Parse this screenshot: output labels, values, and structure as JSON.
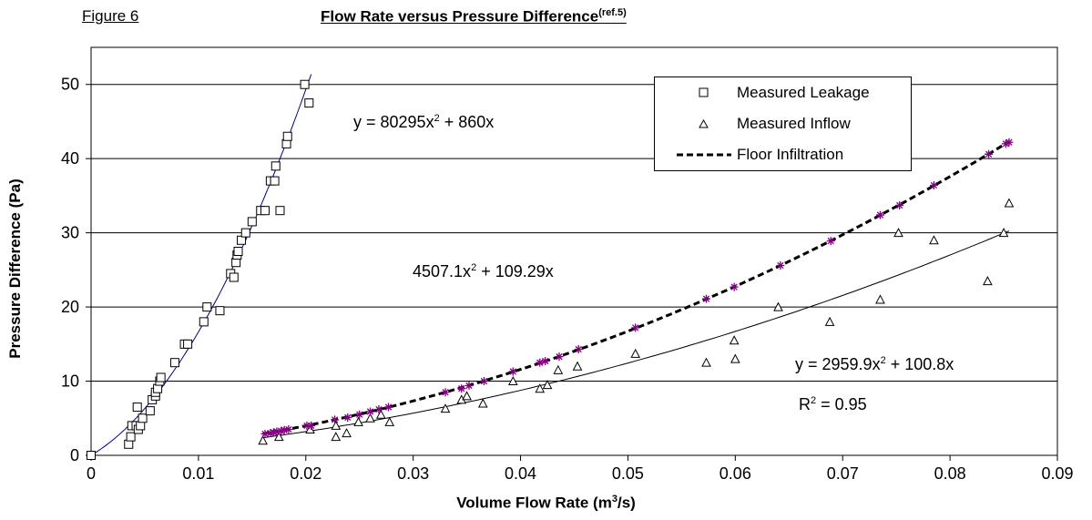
{
  "figure_label": "Figure 6",
  "chart_data": {
    "type": "scatter",
    "title": "Flow Rate versus Pressure Difference",
    "title_ref": "(ref.5)",
    "xlabel": "Volume Flow Rate (m",
    "xlabel_sup": "3",
    "xlabel_end": "/s)",
    "ylabel": "Pressure Difference (Pa)",
    "xlim": [
      0,
      0.09
    ],
    "ylim": [
      0,
      55
    ],
    "x_ticks": [
      0,
      0.01,
      0.02,
      0.03,
      0.04,
      0.05,
      0.06,
      0.07,
      0.08,
      0.09
    ],
    "x_tick_labels": [
      "0",
      "0.01",
      "0.02",
      "0.03",
      "0.04",
      "0.05",
      "0.06",
      "0.07",
      "0.08",
      "0.09"
    ],
    "y_ticks": [
      0,
      10,
      20,
      30,
      40,
      50
    ],
    "y_tick_labels": [
      "0",
      "10",
      "20",
      "30",
      "40",
      "50"
    ],
    "grid": "horizontal",
    "legend_position": "top-right",
    "legend": [
      {
        "label": "Measured Leakage",
        "marker": "square"
      },
      {
        "label": "Measured Inflow",
        "marker": "triangle"
      },
      {
        "label": "Floor Infiltration",
        "marker": "dashed-line"
      }
    ],
    "series": [
      {
        "name": "Measured Leakage",
        "marker": "square",
        "points": [
          [
            0,
            0
          ],
          [
            0.0035,
            1.5
          ],
          [
            0.0037,
            2.5
          ],
          [
            0.0038,
            4
          ],
          [
            0.0042,
            4
          ],
          [
            0.0043,
            6.5
          ],
          [
            0.0044,
            3.5
          ],
          [
            0.0046,
            4
          ],
          [
            0.0048,
            5
          ],
          [
            0.0055,
            6
          ],
          [
            0.0057,
            7.5
          ],
          [
            0.006,
            8
          ],
          [
            0.006,
            8.5
          ],
          [
            0.0062,
            9
          ],
          [
            0.0064,
            10
          ],
          [
            0.0065,
            10.5
          ],
          [
            0.0078,
            12.5
          ],
          [
            0.0087,
            15
          ],
          [
            0.009,
            15
          ],
          [
            0.0105,
            18
          ],
          [
            0.0108,
            20
          ],
          [
            0.012,
            19.5
          ],
          [
            0.013,
            24.5
          ],
          [
            0.0133,
            24
          ],
          [
            0.0135,
            26
          ],
          [
            0.0136,
            27
          ],
          [
            0.0137,
            27.5
          ],
          [
            0.014,
            29
          ],
          [
            0.0144,
            30
          ],
          [
            0.015,
            31.5
          ],
          [
            0.0158,
            33
          ],
          [
            0.0162,
            33
          ],
          [
            0.0167,
            37
          ],
          [
            0.0171,
            37
          ],
          [
            0.0172,
            39
          ],
          [
            0.0176,
            33
          ],
          [
            0.0182,
            42
          ],
          [
            0.0183,
            43
          ],
          [
            0.0199,
            50
          ],
          [
            0.0203,
            47.5
          ]
        ]
      },
      {
        "name": "Measured Inflow",
        "marker": "triangle",
        "points": [
          [
            0.016,
            2
          ],
          [
            0.0175,
            2.5
          ],
          [
            0.0204,
            3.5
          ],
          [
            0.0228,
            2.5
          ],
          [
            0.0238,
            3
          ],
          [
            0.0228,
            4
          ],
          [
            0.0249,
            4.5
          ],
          [
            0.026,
            5
          ],
          [
            0.027,
            5.5
          ],
          [
            0.0278,
            4.5
          ],
          [
            0.033,
            6.3
          ],
          [
            0.0345,
            7.5
          ],
          [
            0.035,
            8
          ],
          [
            0.0365,
            7
          ],
          [
            0.0393,
            10
          ],
          [
            0.0418,
            9
          ],
          [
            0.0425,
            9.5
          ],
          [
            0.0435,
            11.5
          ],
          [
            0.0453,
            12
          ],
          [
            0.0507,
            13.7
          ],
          [
            0.0573,
            12.5
          ],
          [
            0.0599,
            15.5
          ],
          [
            0.06,
            13
          ],
          [
            0.064,
            20
          ],
          [
            0.0688,
            18
          ],
          [
            0.0735,
            21
          ],
          [
            0.0752,
            30
          ],
          [
            0.0785,
            29
          ],
          [
            0.0835,
            23.5
          ],
          [
            0.085,
            30
          ],
          [
            0.0855,
            34
          ]
        ]
      },
      {
        "name": "Floor Infiltration",
        "marker": "star",
        "points": [
          [
            0.0162,
            2.9
          ],
          [
            0.0167,
            3
          ],
          [
            0.017,
            3.1
          ],
          [
            0.0173,
            3.2
          ],
          [
            0.0177,
            3.3
          ],
          [
            0.018,
            3.4
          ],
          [
            0.0184,
            3.5
          ],
          [
            0.0201,
            4
          ],
          [
            0.0205,
            4
          ],
          [
            0.0227,
            4.8
          ],
          [
            0.0239,
            5.1
          ],
          [
            0.025,
            5.5
          ],
          [
            0.026,
            5.9
          ],
          [
            0.0268,
            6.2
          ],
          [
            0.0277,
            6.5
          ],
          [
            0.033,
            8.5
          ],
          [
            0.0345,
            9
          ],
          [
            0.0352,
            9.4
          ],
          [
            0.0366,
            10
          ],
          [
            0.0393,
            11.3
          ],
          [
            0.0418,
            12.5
          ],
          [
            0.0423,
            12.7
          ],
          [
            0.0436,
            13.3
          ],
          [
            0.0454,
            14.3
          ],
          [
            0.0507,
            17.2
          ],
          [
            0.0573,
            21.1
          ],
          [
            0.0599,
            22.7
          ],
          [
            0.0642,
            25.6
          ],
          [
            0.0689,
            28.9
          ],
          [
            0.0735,
            32.4
          ],
          [
            0.0753,
            33.7
          ],
          [
            0.0785,
            36.4
          ],
          [
            0.0836,
            40.6
          ],
          [
            0.0852,
            42
          ],
          [
            0.0855,
            42.2
          ]
        ]
      }
    ],
    "fits": [
      {
        "name": "Measured Leakage",
        "a": 80295,
        "b": 860,
        "x_range": [
          0,
          0.0205
        ],
        "style": "solid",
        "color": "#000080"
      },
      {
        "name": "Measured Inflow",
        "a": 2959.9,
        "b": 100.8,
        "x_range": [
          0.016,
          0.0855
        ],
        "style": "solid",
        "color": "#000000"
      },
      {
        "name": "Floor Infiltration",
        "a": 4507.1,
        "b": 109.29,
        "x_range": [
          0.016,
          0.0855
        ],
        "style": "dashed",
        "color": "#000000"
      }
    ],
    "annotations": {
      "eq_leakage": "y = 80295x",
      "eq_leakage_rest": " + 860x",
      "eq_infiltration": "4507.1x",
      "eq_infiltration_rest": " + 109.29x",
      "eq_inflow": "y = 2959.9x",
      "eq_inflow_rest": " + 100.8x",
      "r2_label": "R",
      "r2_rest": " = 0.95",
      "sup2": "2"
    }
  },
  "colors": {
    "leakage_fit": "#000080",
    "infiltration_marker": "#800080",
    "axis": "#000000",
    "grid": "#000000"
  }
}
